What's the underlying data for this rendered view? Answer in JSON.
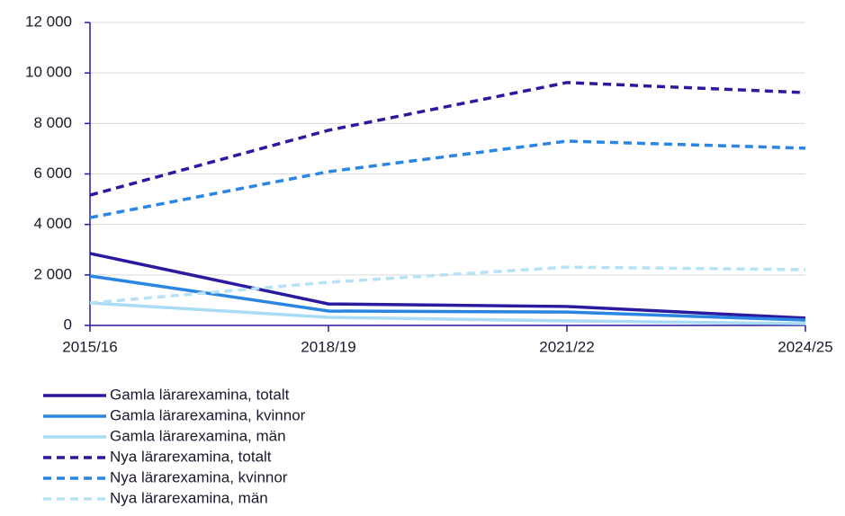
{
  "chart_data": {
    "type": "line",
    "categories": [
      "2015/16",
      "2018/19",
      "2021/22",
      "2024/25"
    ],
    "ylim": [
      0,
      12000
    ],
    "yticks": [
      0,
      {
        "value": 2000,
        "label": "2 000"
      },
      {
        "value": 4000,
        "label": "4 000"
      },
      {
        "value": 6000,
        "label": "6 000"
      },
      {
        "value": 8000,
        "label": "8 000"
      },
      {
        "value": 10000,
        "label": "10 000"
      },
      {
        "value": 12000,
        "label": "12 000"
      }
    ],
    "grid": true,
    "legend": "bottom",
    "series": [
      {
        "name": "Gamla lärarexamina, totalt",
        "color": "#2a1aa0",
        "dashed": false,
        "values": [
          2850,
          850,
          750,
          290
        ]
      },
      {
        "name": "Gamla lärarexamina, kvinnor",
        "color": "#2a86e2",
        "dashed": false,
        "values": [
          1960,
          570,
          530,
          210
        ]
      },
      {
        "name": "Gamla lärarexamina, män",
        "color": "#a9dcf4",
        "dashed": false,
        "values": [
          890,
          320,
          180,
          70
        ]
      },
      {
        "name": "Nya lärarexamina, totalt",
        "color": "#2a1aa0",
        "dashed": true,
        "values": [
          5160,
          7730,
          9620,
          9220
        ]
      },
      {
        "name": "Nya lärarexamina, kvinnor",
        "color": "#2a86e2",
        "dashed": true,
        "values": [
          4270,
          6090,
          7300,
          7020
        ]
      },
      {
        "name": "Nya lärarexamina, män",
        "color": "#b6e2f5",
        "dashed": true,
        "values": [
          890,
          1710,
          2310,
          2210
        ]
      }
    ]
  }
}
